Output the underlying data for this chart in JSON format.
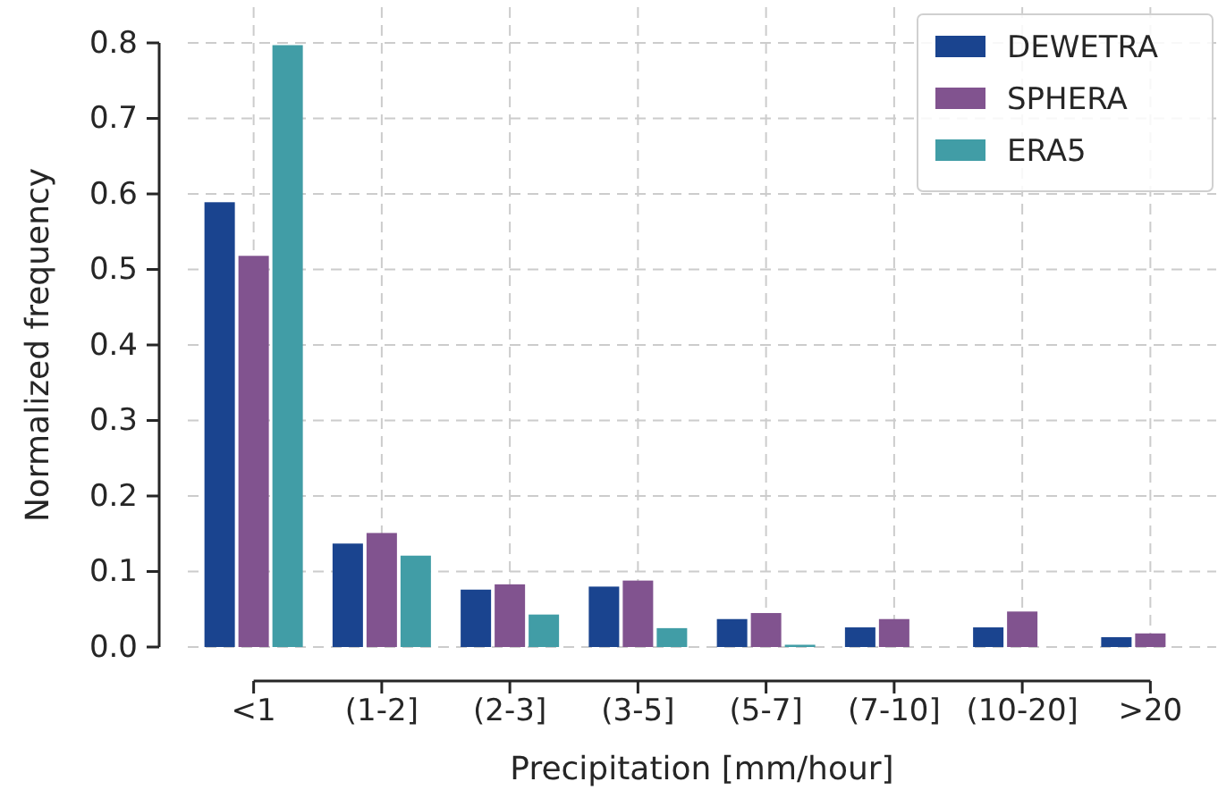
{
  "chart_data": {
    "type": "bar",
    "xlabel": "Precipitation [mm/hour]",
    "ylabel": "Normalized frequency",
    "categories": [
      "<1",
      "(1-2]",
      "(2-3]",
      "(3-5]",
      "(5-7]",
      "(7-10]",
      "(10-20]",
      ">20"
    ],
    "series": [
      {
        "name": "DEWETRA",
        "color": "#1a448f",
        "values": [
          0.589,
          0.137,
          0.076,
          0.08,
          0.037,
          0.026,
          0.026,
          0.013
        ]
      },
      {
        "name": "SPHERA",
        "color": "#81538f",
        "values": [
          0.518,
          0.151,
          0.083,
          0.088,
          0.045,
          0.037,
          0.047,
          0.018
        ]
      },
      {
        "name": "ERA5",
        "color": "#419da6",
        "values": [
          0.797,
          0.121,
          0.043,
          0.025,
          0.003,
          0,
          0,
          0
        ]
      }
    ],
    "ylim": [
      0,
      0.8
    ],
    "yticks": [
      {
        "value": 0,
        "label": "0.0"
      },
      0.1,
      0.2,
      0.3,
      0.4,
      0.5,
      0.6,
      0.7,
      0.8
    ],
    "grid": true,
    "legend": "top right"
  }
}
